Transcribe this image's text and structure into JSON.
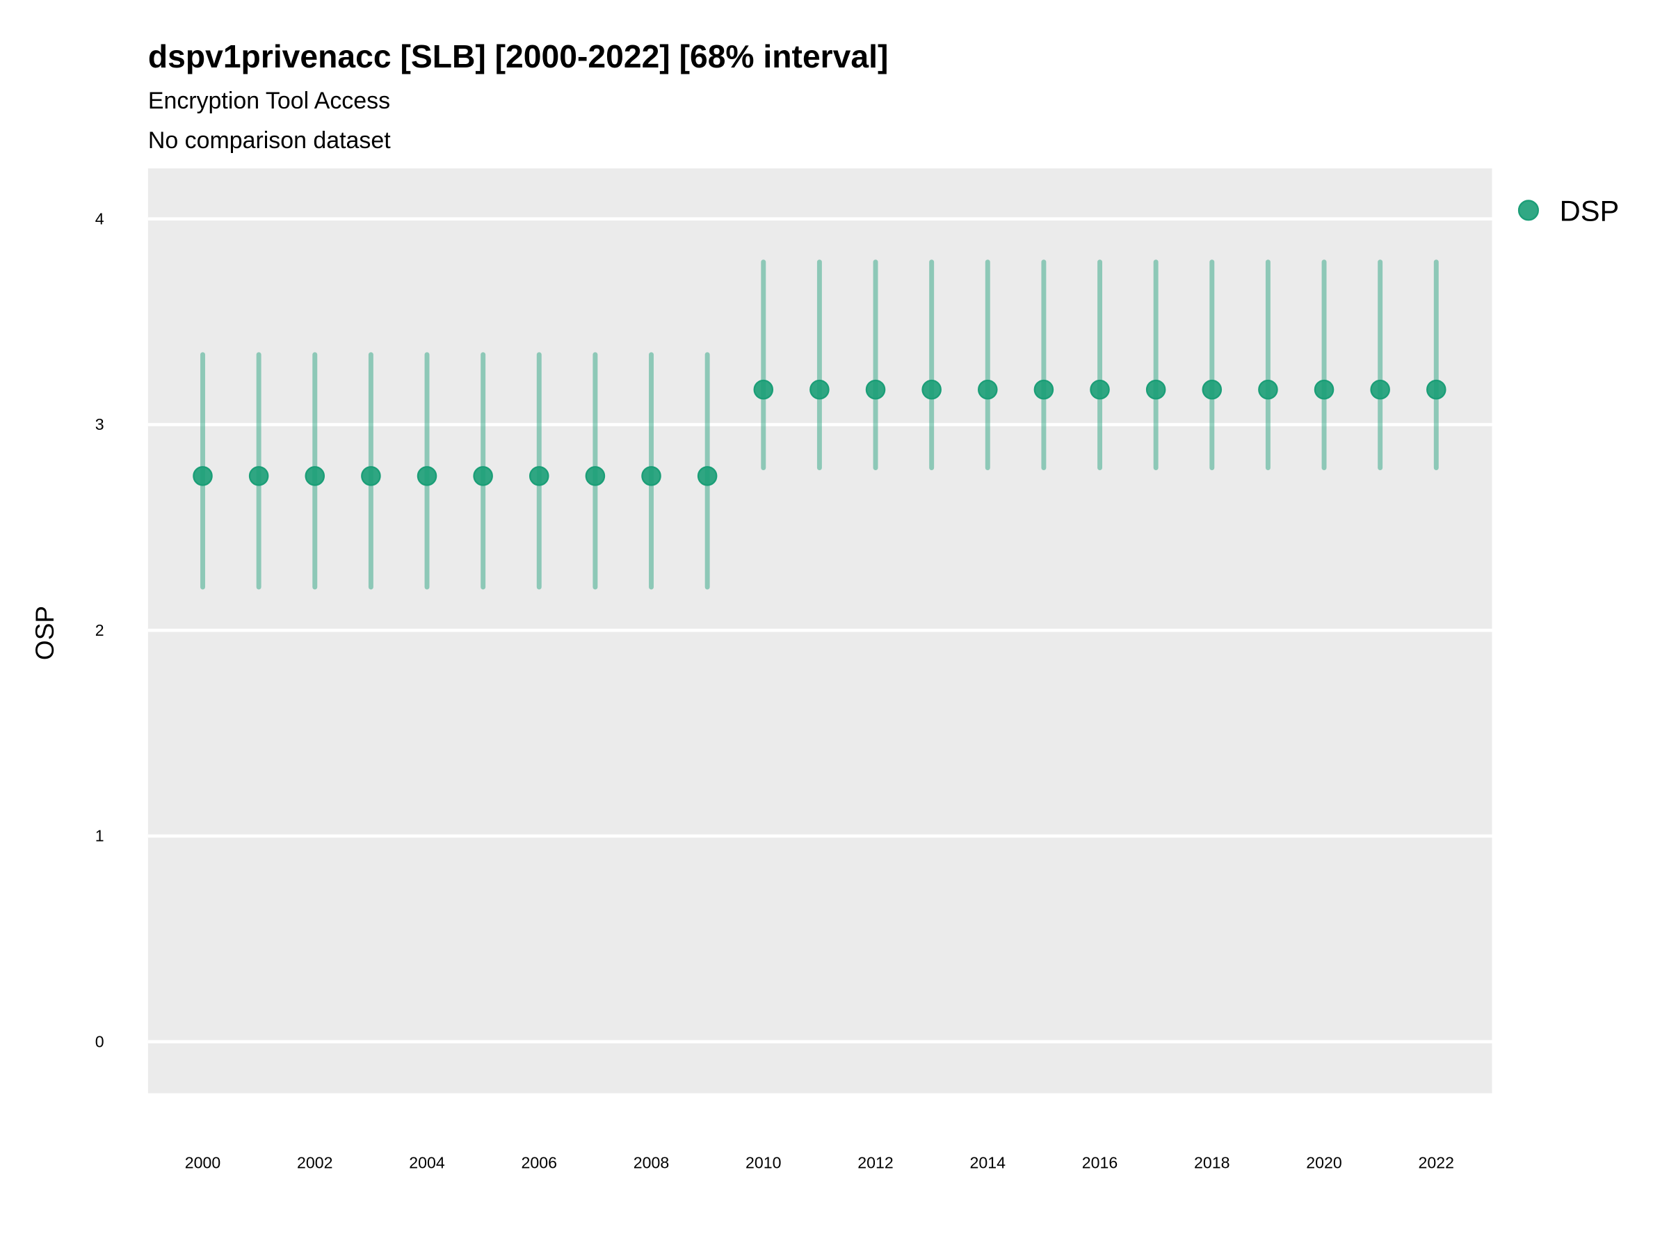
{
  "chart_data": {
    "type": "scatter",
    "title": "dspv1privenacc [SLB] [2000-2022] [68% interval]",
    "subtitle": "Encryption Tool Access",
    "caption_line": "No comparison dataset",
    "xlabel": "",
    "ylabel": "OSP",
    "xlim": [
      1999,
      2023
    ],
    "ylim": [
      -0.25,
      4.25
    ],
    "x_ticks": [
      "2000",
      "2002",
      "2004",
      "2006",
      "2008",
      "2010",
      "2012",
      "2014",
      "2016",
      "2018",
      "2020",
      "2022"
    ],
    "y_ticks": [
      "0",
      "1",
      "2",
      "3",
      "4"
    ],
    "grid": true,
    "legend_position": "right",
    "series": [
      {
        "name": "DSP",
        "color": "#1b9e77",
        "x": [
          2000,
          2001,
          2002,
          2003,
          2004,
          2005,
          2006,
          2007,
          2008,
          2009,
          2010,
          2011,
          2012,
          2013,
          2014,
          2015,
          2016,
          2017,
          2018,
          2019,
          2020,
          2021,
          2022
        ],
        "y": [
          2.75,
          2.75,
          2.75,
          2.75,
          2.75,
          2.75,
          2.75,
          2.75,
          2.75,
          2.75,
          3.17,
          3.17,
          3.17,
          3.17,
          3.17,
          3.17,
          3.17,
          3.17,
          3.17,
          3.17,
          3.17,
          3.17,
          3.17
        ],
        "lower": [
          2.21,
          2.21,
          2.21,
          2.21,
          2.21,
          2.21,
          2.21,
          2.21,
          2.21,
          2.21,
          2.79,
          2.79,
          2.79,
          2.79,
          2.79,
          2.79,
          2.79,
          2.79,
          2.79,
          2.79,
          2.79,
          2.79,
          2.79
        ],
        "upper": [
          3.34,
          3.34,
          3.34,
          3.34,
          3.34,
          3.34,
          3.34,
          3.34,
          3.34,
          3.34,
          3.79,
          3.79,
          3.79,
          3.79,
          3.79,
          3.79,
          3.79,
          3.79,
          3.79,
          3.79,
          3.79,
          3.79,
          3.79
        ]
      }
    ]
  },
  "colors": {
    "panel": "#ebebeb",
    "grid": "#ffffff",
    "point": "#1b9e77"
  }
}
